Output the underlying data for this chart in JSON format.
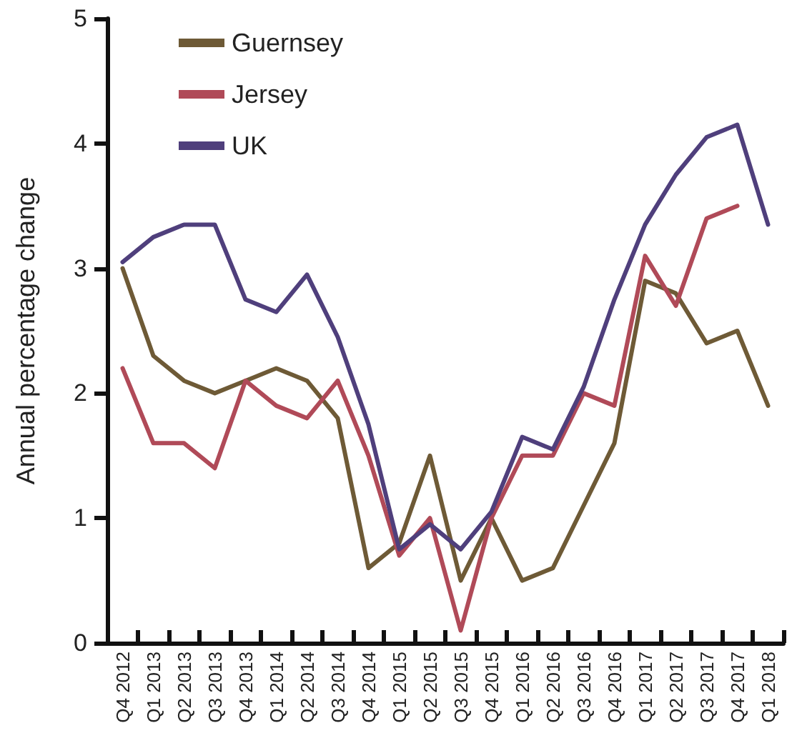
{
  "chart_data": {
    "type": "line",
    "ylabel": "Annual percentage change",
    "categories": [
      "Q4 2012",
      "Q1 2013",
      "Q2 2013",
      "Q3 2013",
      "Q4 2013",
      "Q1 2014",
      "Q2 2014",
      "Q3 2014",
      "Q4 2014",
      "Q1 2015",
      "Q2 2015",
      "Q3 2015",
      "Q4 2015",
      "Q1 2016",
      "Q2 2016",
      "Q3 2016",
      "Q4 2016",
      "Q1 2017",
      "Q2 2017",
      "Q3 2017",
      "Q4 2017",
      "Q1 2018"
    ],
    "series": [
      {
        "name": "Guernsey",
        "color": "#6e5a36",
        "values": [
          3.0,
          2.3,
          2.1,
          2.0,
          2.1,
          2.2,
          2.1,
          1.8,
          0.6,
          0.8,
          1.5,
          0.5,
          1.0,
          0.5,
          0.6,
          1.1,
          1.6,
          2.9,
          2.8,
          2.4,
          2.5,
          1.9
        ]
      },
      {
        "name": "Jersey",
        "color": "#b04a58",
        "values": [
          2.2,
          1.6,
          1.6,
          1.4,
          2.1,
          1.9,
          1.8,
          2.1,
          1.5,
          0.7,
          1.0,
          0.1,
          1.0,
          1.5,
          1.5,
          2.0,
          1.9,
          3.1,
          2.7,
          3.4,
          3.5,
          null
        ]
      },
      {
        "name": "UK",
        "color": "#4f3f7c",
        "values": [
          3.05,
          3.25,
          3.35,
          3.35,
          2.75,
          2.65,
          2.95,
          2.45,
          1.75,
          0.75,
          0.95,
          0.75,
          1.05,
          1.65,
          1.55,
          2.05,
          2.75,
          3.35,
          3.75,
          4.05,
          4.15,
          3.35
        ]
      }
    ],
    "ylim": [
      0,
      5
    ],
    "yticks": [
      0,
      1,
      2,
      3,
      4,
      5
    ],
    "grid": false,
    "legend": "top left",
    "marker": "none",
    "line_style": "solid"
  }
}
